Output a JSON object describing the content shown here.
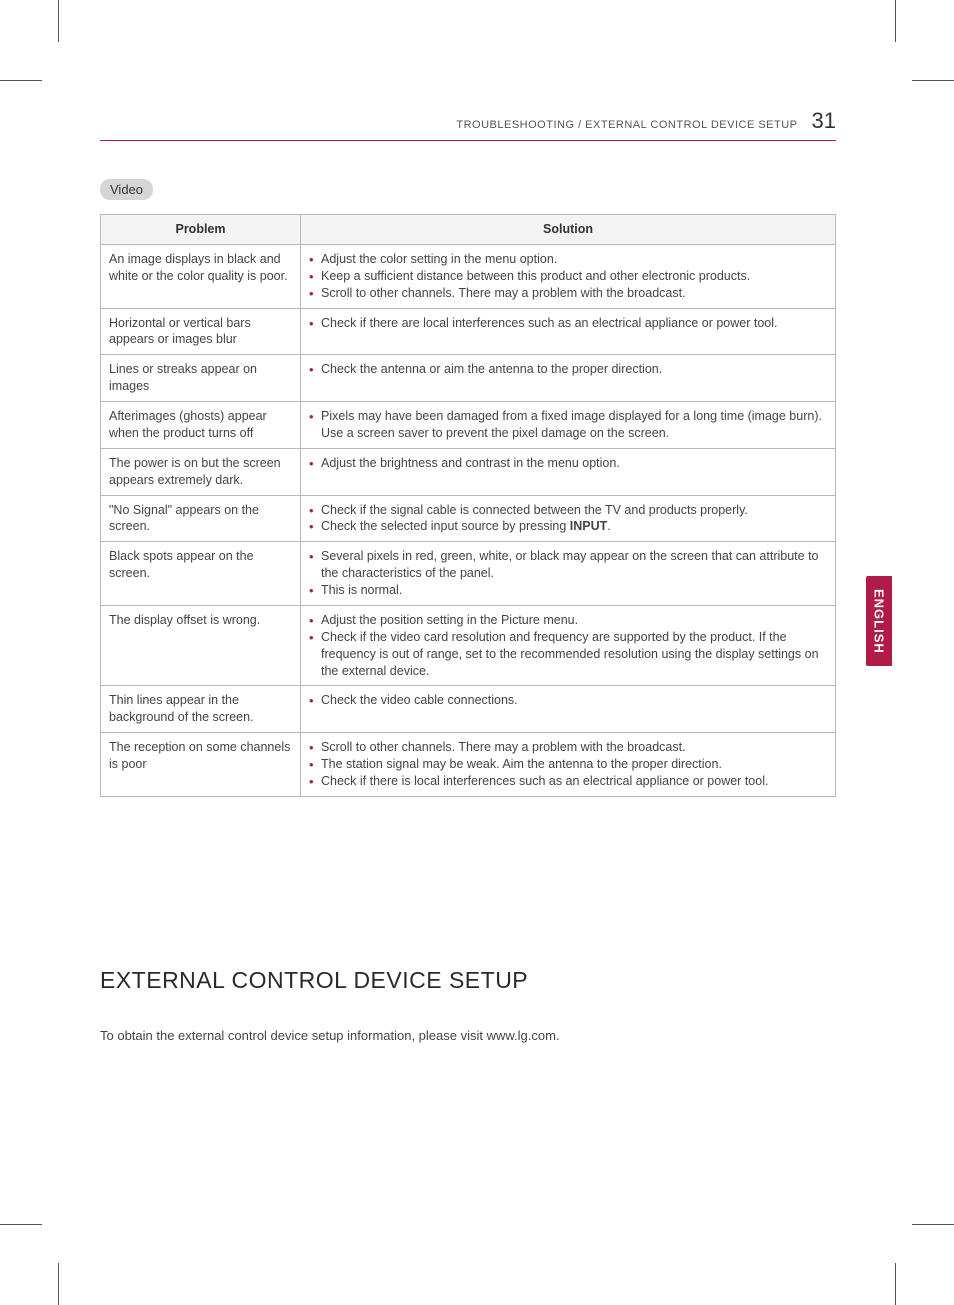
{
  "header": {
    "category": "TROUBLESHOOTING / EXTERNAL CONTROL DEVICE SETUP",
    "page_number": "31"
  },
  "side_tab": "ENGLISH",
  "pill_label": "Video",
  "table": {
    "col_problem": "Problem",
    "col_solution": "Solution",
    "rows": [
      {
        "problem": "An image displays in black and white or the color quality is poor.",
        "solutions": [
          "Adjust the color setting in the menu option.",
          "Keep a sufficient distance between this product and other electronic products.",
          "Scroll to other channels. There may a problem with the broadcast."
        ]
      },
      {
        "problem": "Horizontal or vertical bars appears or images blur",
        "solutions": [
          "Check if there are local interferences such as an electrical appliance or power tool."
        ]
      },
      {
        "problem": "Lines or streaks appear on images",
        "solutions": [
          "Check the antenna or aim the antenna to the proper direction."
        ]
      },
      {
        "problem": "Afterimages (ghosts) appear when the product turns off",
        "solutions": [
          "Pixels may have been damaged from a fixed image displayed for a long time (image burn). Use a screen saver to prevent the pixel damage on the screen."
        ]
      },
      {
        "problem": "The power is on but the screen appears extremely dark.",
        "solutions": [
          "Adjust the brightness and contrast in the menu option."
        ]
      },
      {
        "problem": "\"No Signal\" appears on the screen.",
        "solutions": [
          "Check if the signal cable is connected between the TV and products properly.",
          "Check the selected input source by pressing <b>INPUT</b>."
        ]
      },
      {
        "problem": "Black spots appear on the screen.",
        "solutions": [
          "Several pixels in red, green, white, or black may appear on the screen that can attribute to the characteristics of the panel.",
          "This is normal."
        ]
      },
      {
        "problem": "The display offset is wrong.",
        "solutions": [
          "Adjust the position setting in the Picture menu.",
          "Check if the video card resolution and frequency are supported by the product. If the frequency is out of range, set to the recommended resolution using the display settings on the external device."
        ]
      },
      {
        "problem": "Thin lines appear in the background of the screen.",
        "solutions": [
          "Check the video cable connections."
        ]
      },
      {
        "problem": "The reception on some channels is poor",
        "solutions": [
          "Scroll to other channels. There may a problem with the broadcast.",
          "The station signal may be weak. Aim the antenna to the proper direction.",
          "Check if there is local interferences such as an electrical appliance or power tool."
        ]
      }
    ]
  },
  "section2": {
    "title": "EXTERNAL CONTROL DEVICE SETUP",
    "body": "To obtain the external control device setup information, please visit www.lg.com."
  },
  "colors": {
    "accent": "#b01b48",
    "border": "#b8b8b8",
    "th_bg": "#f3f3f3",
    "pill_bg": "#d6d6d6",
    "text": "#444444"
  }
}
